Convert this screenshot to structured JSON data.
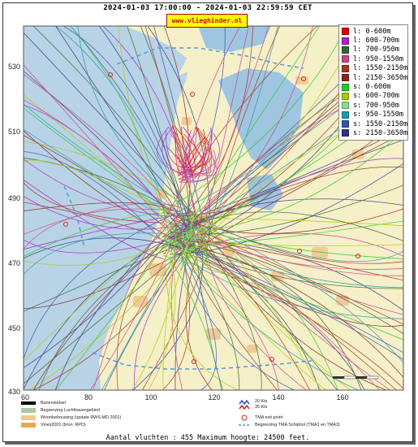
{
  "header": {
    "title": "2024-01-03 17:00:00 - 2024-01-03 22:59:59 CET",
    "badge": "www.vlieghinder.nl"
  },
  "axes": {
    "y_ticks": [
      "530",
      "510",
      "490",
      "470",
      "450",
      "430"
    ],
    "x_ticks": [
      "60",
      "80",
      "100",
      "120",
      "140",
      "160"
    ]
  },
  "legend": {
    "items": [
      {
        "label": "l: 0-600m",
        "color": "#dd0000"
      },
      {
        "label": "l: 600-700m",
        "color": "#aa22cc"
      },
      {
        "label": "l: 700-950m",
        "color": "#336633"
      },
      {
        "label": "l: 950-1550m",
        "color": "#cc4488"
      },
      {
        "label": "l: 1550-2150m",
        "color": "#aa3322"
      },
      {
        "label": "l: 2150-3650m",
        "color": "#882222"
      },
      {
        "label": "s: 0-600m",
        "color": "#22cc22"
      },
      {
        "label": "s: 600-700m",
        "color": "#aacc00"
      },
      {
        "label": "s: 700-950m",
        "color": "#88dd88"
      },
      {
        "label": "s: 950-1550m",
        "color": "#2299aa"
      },
      {
        "label": "s: 1550-2150m",
        "color": "#3355aa"
      },
      {
        "label": "s: 2150-3650m",
        "color": "#333388"
      }
    ]
  },
  "bottom_legend": {
    "banenstelsel": "Banenstelsel",
    "luchthaven": "Begrenzing Luchthavengebied",
    "woonbebouwing": "Woonbebouwing (update RWS-MD 2001)",
    "vinex": "Vinex2001 (bron: RPD)",
    "kts20": "20 Kts",
    "kts35": "35 Kts",
    "tma_exit": "TMA exit point",
    "tma_border": "Begrenzing TMA Schiphol  (TMA1 en TMA3)"
  },
  "footer": {
    "text": "Aantal vluchten : 455 Maximum hoogte: 24500 feet."
  },
  "colors": {
    "sea": "#b9d3e6",
    "land": "#f5f0c8",
    "urban": "#f0c890",
    "water_inland": "#9fc5e0",
    "tma_exit": "#cc2222"
  }
}
